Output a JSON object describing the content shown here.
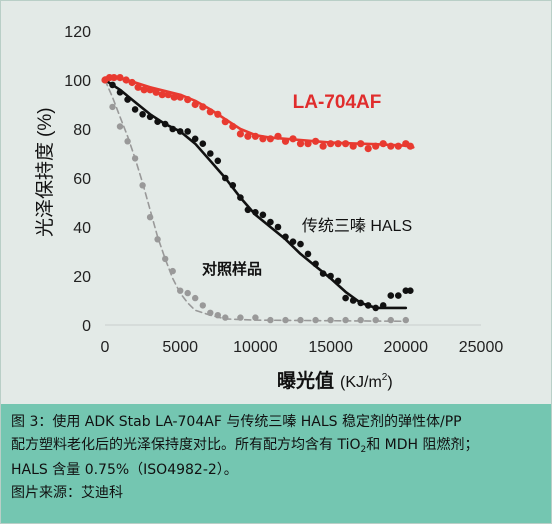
{
  "chart_data": {
    "type": "scatter",
    "title": "",
    "xlabel": "曝光值",
    "xlabel_unit": "(KJ/m",
    "xlabel_unit_sup": "2",
    "xlabel_unit_close": ")",
    "ylabel": "光泽保持度",
    "ylabel_unit": "(%)",
    "xlim": [
      0,
      25000
    ],
    "ylim": [
      0,
      120
    ],
    "xticks": [
      0,
      5000,
      10000,
      15000,
      20000,
      25000
    ],
    "yticks": [
      0,
      20,
      40,
      60,
      80,
      100,
      120
    ],
    "xtick_labels": [
      "0",
      "5000",
      "10000",
      "15000",
      "20000",
      "25000"
    ],
    "ytick_labels": [
      "0",
      "20",
      "40",
      "60",
      "80",
      "100",
      "120"
    ],
    "grid": false,
    "series": [
      {
        "name": "LA-704AF",
        "color": "#e83a30",
        "label_color": "#e02d2d",
        "points": [
          [
            0,
            100
          ],
          [
            300,
            101
          ],
          [
            600,
            101
          ],
          [
            1000,
            101
          ],
          [
            1400,
            100
          ],
          [
            1800,
            99
          ],
          [
            2200,
            97
          ],
          [
            2600,
            96
          ],
          [
            3000,
            96
          ],
          [
            3400,
            95
          ],
          [
            3800,
            94
          ],
          [
            4200,
            94
          ],
          [
            4600,
            93
          ],
          [
            5000,
            93
          ],
          [
            5500,
            92
          ],
          [
            6000,
            90
          ],
          [
            6500,
            89
          ],
          [
            7000,
            87
          ],
          [
            7500,
            86
          ],
          [
            8000,
            83
          ],
          [
            8500,
            81
          ],
          [
            9000,
            78
          ],
          [
            9500,
            77
          ],
          [
            10000,
            77
          ],
          [
            10500,
            76
          ],
          [
            11000,
            76
          ],
          [
            11500,
            77
          ],
          [
            12000,
            75
          ],
          [
            12500,
            76
          ],
          [
            13000,
            74
          ],
          [
            13500,
            74
          ],
          [
            14000,
            75
          ],
          [
            14500,
            73
          ],
          [
            15000,
            74
          ],
          [
            15500,
            74
          ],
          [
            16000,
            74
          ],
          [
            16500,
            73
          ],
          [
            17000,
            74
          ],
          [
            17500,
            72
          ],
          [
            18000,
            73
          ],
          [
            18500,
            74
          ],
          [
            19000,
            73
          ],
          [
            19500,
            73
          ],
          [
            20000,
            74
          ],
          [
            20300,
            73
          ]
        ],
        "trend": [
          [
            0,
            101
          ],
          [
            1000,
            101
          ],
          [
            2000,
            99
          ],
          [
            3000,
            97
          ],
          [
            4000,
            95.5
          ],
          [
            5000,
            94
          ],
          [
            6000,
            91.5
          ],
          [
            7000,
            88
          ],
          [
            8000,
            84
          ],
          [
            9000,
            80
          ],
          [
            10000,
            77.5
          ],
          [
            11000,
            76.5
          ],
          [
            12000,
            76
          ],
          [
            13000,
            75.5
          ],
          [
            14000,
            75
          ],
          [
            15000,
            74.5
          ],
          [
            16000,
            74.2
          ],
          [
            17000,
            74
          ],
          [
            18000,
            73.8
          ],
          [
            19000,
            73.5
          ],
          [
            20000,
            73.2
          ],
          [
            20500,
            72.5
          ]
        ]
      },
      {
        "name": "传统三嗪 HALS",
        "color": "#111111",
        "label_color": "#111111",
        "points": [
          [
            0,
            100
          ],
          [
            500,
            98
          ],
          [
            1000,
            95
          ],
          [
            1500,
            92
          ],
          [
            2000,
            88
          ],
          [
            2500,
            86
          ],
          [
            3000,
            85
          ],
          [
            3500,
            83
          ],
          [
            4000,
            82
          ],
          [
            4500,
            80
          ],
          [
            5000,
            79
          ],
          [
            5500,
            79
          ],
          [
            6000,
            76
          ],
          [
            6500,
            74
          ],
          [
            7000,
            70
          ],
          [
            7500,
            67
          ],
          [
            8000,
            60
          ],
          [
            8500,
            57
          ],
          [
            9000,
            52
          ],
          [
            9500,
            47
          ],
          [
            10000,
            46
          ],
          [
            10500,
            45
          ],
          [
            11000,
            42
          ],
          [
            11500,
            40
          ],
          [
            12000,
            36
          ],
          [
            12500,
            34
          ],
          [
            13000,
            33
          ],
          [
            13500,
            29
          ],
          [
            14000,
            25
          ],
          [
            14500,
            21
          ],
          [
            15000,
            20
          ],
          [
            15500,
            18
          ],
          [
            16000,
            11
          ],
          [
            16500,
            10
          ],
          [
            17000,
            9
          ],
          [
            17500,
            8
          ],
          [
            18000,
            7
          ],
          [
            18500,
            8
          ],
          [
            19000,
            12
          ],
          [
            19500,
            12
          ],
          [
            20000,
            14
          ],
          [
            20300,
            14
          ]
        ],
        "trend": [
          [
            0,
            100
          ],
          [
            1000,
            96
          ],
          [
            2000,
            91
          ],
          [
            3000,
            86
          ],
          [
            4000,
            82
          ],
          [
            5000,
            79
          ],
          [
            6000,
            74
          ],
          [
            7000,
            67
          ],
          [
            8000,
            60
          ],
          [
            9000,
            52
          ],
          [
            10000,
            45
          ],
          [
            11000,
            40
          ],
          [
            12000,
            35
          ],
          [
            13000,
            29
          ],
          [
            14000,
            24
          ],
          [
            15000,
            19
          ],
          [
            16000,
            13.5
          ],
          [
            17000,
            9
          ],
          [
            18000,
            7
          ],
          [
            19000,
            7
          ],
          [
            20000,
            7
          ]
        ]
      },
      {
        "name": "对照样品",
        "color": "#999999",
        "label_color": "#111111",
        "points": [
          [
            500,
            89
          ],
          [
            1000,
            81
          ],
          [
            1500,
            75
          ],
          [
            2000,
            68
          ],
          [
            2500,
            57
          ],
          [
            3000,
            44
          ],
          [
            3500,
            35
          ],
          [
            4000,
            27
          ],
          [
            4500,
            22
          ],
          [
            5000,
            14
          ],
          [
            5500,
            13
          ],
          [
            6000,
            11
          ],
          [
            6500,
            8
          ],
          [
            7000,
            5
          ],
          [
            7500,
            4
          ],
          [
            8000,
            3
          ],
          [
            9000,
            3
          ],
          [
            10000,
            3
          ],
          [
            11000,
            2
          ],
          [
            12000,
            2
          ],
          [
            13000,
            2
          ],
          [
            14000,
            2
          ],
          [
            15000,
            2
          ],
          [
            16000,
            2
          ],
          [
            17000,
            2
          ],
          [
            18000,
            2
          ],
          [
            19000,
            2
          ],
          [
            20000,
            2
          ]
        ],
        "trend": [
          [
            0,
            100
          ],
          [
            500,
            93
          ],
          [
            1000,
            85
          ],
          [
            1500,
            77
          ],
          [
            2000,
            68
          ],
          [
            2500,
            58
          ],
          [
            3000,
            47
          ],
          [
            3500,
            36
          ],
          [
            4000,
            27
          ],
          [
            4500,
            19
          ],
          [
            5000,
            13
          ],
          [
            5500,
            9
          ],
          [
            6000,
            6
          ],
          [
            7000,
            4
          ],
          [
            8000,
            2.5
          ],
          [
            10000,
            2
          ],
          [
            14000,
            1.8
          ],
          [
            20000,
            1.5
          ]
        ]
      }
    ]
  },
  "caption": {
    "line1": "图 3：使用 ADK Stab LA-704AF 与传统三嗪 HALS 稳定剂的弹性体/PP",
    "line2_pre": "配方塑料老化后的光泽保持度对比。所有配方均含有 TiO",
    "line2_sub": "2",
    "line2_post": "和 MDH 阻燃剂；",
    "line3": "HALS 含量 0.75%（ISO4982-2）。",
    "line4": "图片来源：艾迪科"
  },
  "colors": {
    "chart_bg": "#e3eae7",
    "caption_bg": "#74c6b1"
  }
}
